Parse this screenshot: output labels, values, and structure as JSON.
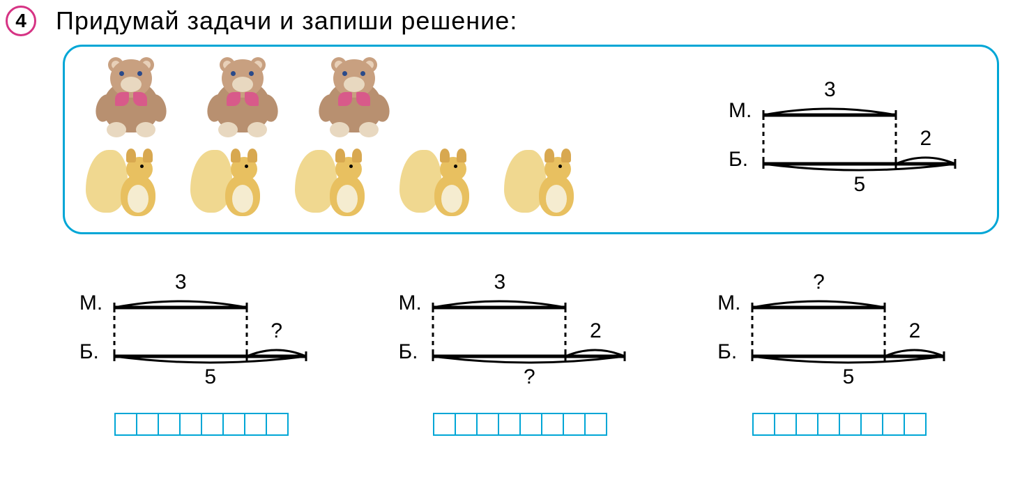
{
  "exercise_number": "4",
  "title": "Придумай задачи и запиши решение:",
  "labels": {
    "M": "М.",
    "B": "Б."
  },
  "colors": {
    "border_blue": "#00a6d6",
    "number_circle": "#d63384",
    "line": "#000000"
  },
  "answer_cells": 8,
  "top_diagram": {
    "top_value": "3",
    "extra_value": "2",
    "bottom_value": "5",
    "top_label": "М.",
    "bottom_label": "Б."
  },
  "bottom_diagrams": [
    {
      "top_value": "3",
      "extra_value": "?",
      "bottom_value": "5",
      "top_label": "М.",
      "bottom_label": "Б."
    },
    {
      "top_value": "3",
      "extra_value": "2",
      "bottom_value": "?",
      "top_label": "М.",
      "bottom_label": "Б."
    },
    {
      "top_value": "?",
      "extra_value": "2",
      "bottom_value": "5",
      "top_label": "М.",
      "bottom_label": "Б."
    }
  ],
  "bears_count": 3,
  "squirrels_count": 5,
  "diagram_style": {
    "stroke_width_thick": 5,
    "stroke_width_thin": 3,
    "dash": "6,6",
    "font_size": 30
  }
}
